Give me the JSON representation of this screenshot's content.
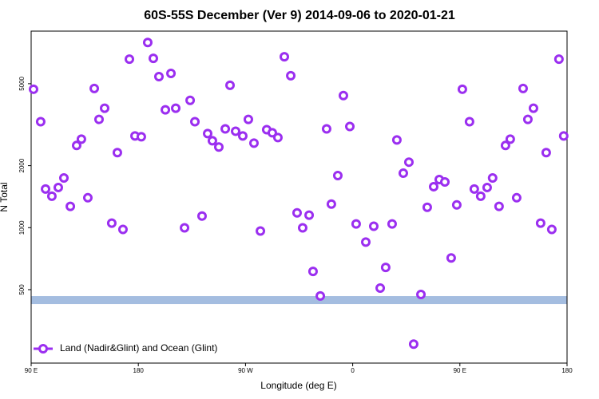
{
  "chart_data": {
    "type": "scatter",
    "title": "60S-55S December (Ver 9)   2014-09-06 to 2020-01-21",
    "x_label": "Longitude (deg E)",
    "y_label": "N Total",
    "log_y": true,
    "legend": "bottom-left",
    "xlim": [
      90,
      540
    ],
    "ylim": [
      220,
      9000
    ],
    "xticks": [
      {
        "value": 90,
        "label": "90 E"
      },
      {
        "value": 180,
        "label": "180"
      },
      {
        "value": 270,
        "label": "90 W"
      },
      {
        "value": 360,
        "label": "0"
      },
      {
        "value": 450,
        "label": "90 E"
      },
      {
        "value": 540,
        "label": "180"
      }
    ],
    "yticks": [
      500,
      1000,
      2000,
      5000
    ],
    "reference_band": {
      "value": 445,
      "color": "#a4bde0"
    },
    "x": [
      92.0,
      98.0,
      102.1,
      107.4,
      112.8,
      117.5,
      122.9,
      128.2,
      132.2,
      137.6,
      143.0,
      147.0,
      151.7,
      157.7,
      162.4,
      167.1,
      172.5,
      177.2,
      182.5,
      187.9,
      192.6,
      197.3,
      202.7,
      207.4,
      211.4,
      218.8,
      223.5,
      227.5,
      233.5,
      238.2,
      242.2,
      247.6,
      253.0,
      257.0,
      261.7,
      267.7,
      272.4,
      277.1,
      282.5,
      287.8,
      292.5,
      297.2,
      302.6,
      308.0,
      313.3,
      318.0,
      323.4,
      326.7,
      332.8,
      338.1,
      342.1,
      347.5,
      352.2,
      357.6,
      362.9,
      371.0,
      377.7,
      383.1,
      387.7,
      393.1,
      397.1,
      402.5,
      407.2,
      411.2,
      417.3,
      422.6,
      428.0,
      432.7,
      437.4,
      442.7,
      447.4,
      452.1,
      458.1,
      462.1,
      467.5,
      472.9,
      477.5,
      482.9,
      488.3,
      492.3,
      497.7,
      503.1,
      507.1,
      511.8,
      517.8,
      522.5,
      527.2,
      533.2,
      537.2
    ],
    "series": [
      {
        "name": "Land (Nadir&Glint) and Ocean (Glint)",
        "color": "#9b2ff0",
        "values": [
          4700,
          3270,
          1540,
          1422,
          1567,
          1743,
          1268,
          2506,
          2690,
          1397,
          4740,
          3356,
          3800,
          1052,
          2314,
          980,
          6580,
          2787,
          2762,
          7924,
          6640,
          5415,
          3732,
          5610,
          3800,
          998,
          4150,
          3270,
          1139,
          2863,
          2643,
          2462,
          3017,
          4912,
          2939,
          2787,
          3356,
          2573,
          963,
          2990,
          2888,
          2738,
          6755,
          5465,
          1180,
          998,
          1150,
          613,
          466,
          3017,
          1301,
          1790,
          4380,
          3100,
          1042,
          851,
          1016,
          509,
          641,
          1042,
          2666,
          1838,
          2080,
          272,
          474,
          1256,
          1581,
          1712,
          1667,
          713,
          1290,
          4700,
          3270,
          1540,
          1422,
          1567,
          1743,
          1268,
          2506,
          2690,
          1397,
          4740,
          3356,
          3800,
          1052,
          2314,
          980,
          6580,
          2787
        ]
      }
    ]
  }
}
